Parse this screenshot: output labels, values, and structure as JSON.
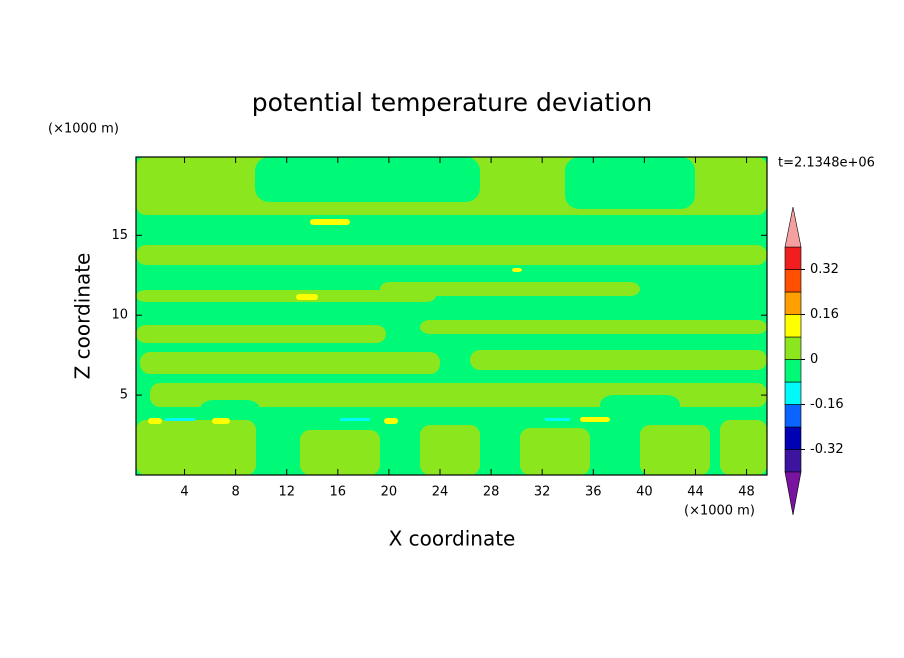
{
  "chart_data": {
    "type": "contour",
    "title": "potential temperature deviation",
    "xlabel": "X coordinate",
    "ylabel": "Z coordinate",
    "x_unit": "(×1000 m)",
    "y_unit": "(×1000 m)",
    "annotation": "t=2.1348e+06",
    "xlim": [
      0.2,
      49.6
    ],
    "xticks": [
      4,
      8,
      12,
      16,
      20,
      24,
      28,
      32,
      36,
      40,
      44,
      48
    ],
    "ylim": [
      0,
      19.9
    ],
    "yticks": [
      5,
      10,
      15
    ],
    "levels": [
      -0.4,
      -0.32,
      -0.24,
      -0.16,
      -0.08,
      0,
      0.08,
      0.16,
      0.24,
      0.32,
      0.4
    ],
    "colors": [
      "#3c14a0",
      "#0000b4",
      "#0a64ff",
      "#00fafa",
      "#00fa78",
      "#8ce61e",
      "#ffff00",
      "#ffa000",
      "#ff5000",
      "#f01e1e"
    ],
    "over_color": "#f4a0a0",
    "under_color": "#7814a0",
    "cbarticks": [
      -0.32,
      -0.16,
      0,
      0.16,
      0.32
    ]
  }
}
